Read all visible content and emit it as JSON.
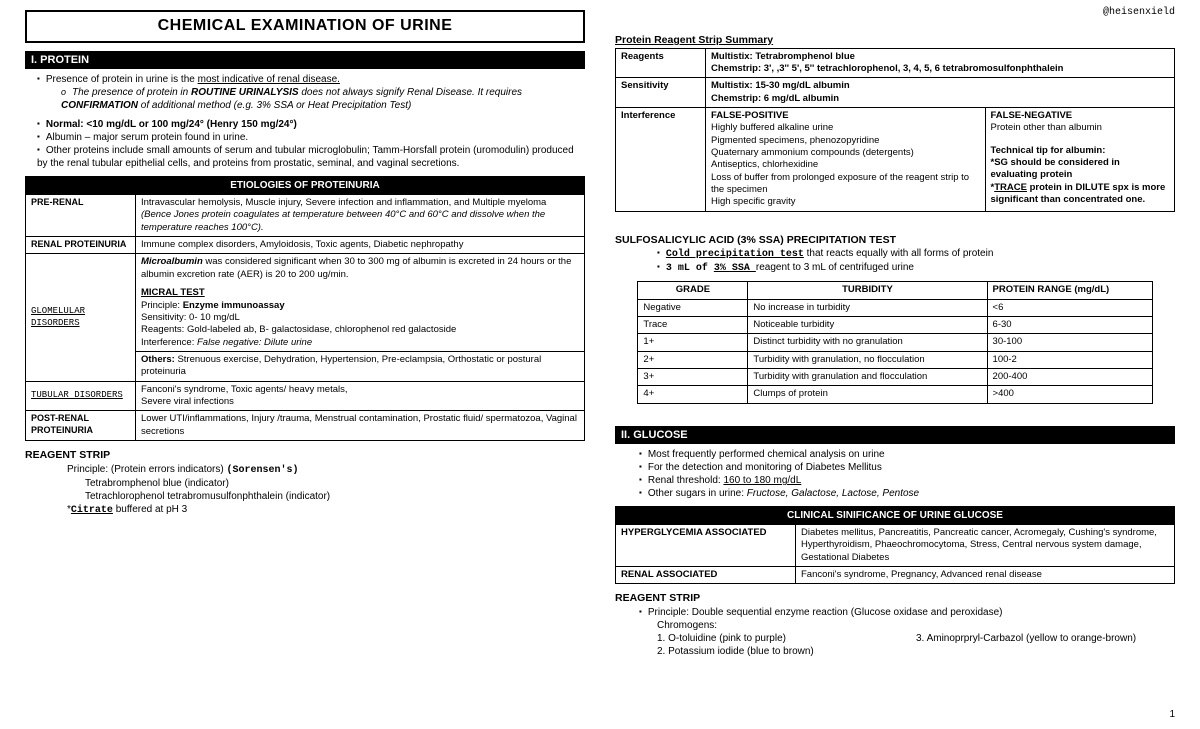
{
  "watermark": "@heisenxield",
  "pageNum": "1",
  "title": "CHEMICAL EXAMINATION OF URINE",
  "sec1": {
    "bar": "I. PROTEIN",
    "b1a": "Presence of protein in urine is the ",
    "b1b": "most indicative of renal disease.",
    "b1sub_a": "The presence of protein in ",
    "b1sub_b": "ROUTINE URINALYSIS",
    "b1sub_c": " does not always signify Renal Disease. It requires ",
    "b1sub_d": "CONFIRMATION",
    "b1sub_e": " of additional method (e.g. 3% SSA or Heat Precipitation Test)",
    "b2": "Normal: <10 mg/dL or 100 mg/24° (Henry 150 mg/24°)",
    "b3": "Albumin – major serum protein found in urine.",
    "b4": "Other proteins include small amounts of serum and tubular microglobulin; Tamm-Horsfall protein (uromodulin) produced by the renal tubular epithelial cells, and proteins from prostatic, seminal, and vaginal secretions."
  },
  "etio": {
    "header": "ETIOLOGIES OF PROTEINURIA",
    "r1_label": "PRE-RENAL",
    "r1_a": "Intravascular hemolysis, Muscle injury, Severe infection and inflammation, and Multiple myeloma ",
    "r1_b": "(Bence Jones protein coagulates at temperature between 40°C and 60°C and dissolve when the temperature reaches 100°C).",
    "r2_label": "RENAL PROTEINURIA",
    "r2_text": "Immune complex disorders, Amyloidosis, Toxic agents, Diabetic nephropathy",
    "r3_label": "GLOMELULAR DISORDERS",
    "r3_a": "Microalbumin",
    "r3_b": " was considered significant when 30 to 300 mg of albumin is excreted in 24 hours or the albumin excretion rate (AER) is 20 to 200 ug/min.",
    "r3_mt": "MICRAL TEST",
    "r3_p1": "Principle: ",
    "r3_p2": "Enzyme immunoassay",
    "r3_s": "Sensitivity: 0- 10 mg/dL",
    "r3_r": "Reagents: Gold-labeled ab, B- galactosidase, chlorophenol red galactoside",
    "r3_i1": "Interference: ",
    "r3_i2": "False negative: Dilute urine",
    "r3_o1": "Others: ",
    "r3_o2": "Strenuous exercise, Dehydration, Hypertension, Pre-eclampsia, Orthostatic or postural proteinuria",
    "r4_label": "TUBULAR DISORDERS",
    "r4_text": "Fanconi's syndrome, Toxic agents/ heavy metals,\nSevere viral infections",
    "r5_label": "POST-RENAL PROTEINURIA",
    "r5_text": "Lower UTI/inflammations, Injury /trauma, Menstrual contamination, Prostatic fluid/ spermatozoa, Vaginal secretions"
  },
  "rstrip1": {
    "title": "REAGENT STRIP",
    "l1a": "Principle: (Protein errors indicators) ",
    "l1b": "(Sorensen's)",
    "l2": "Tetrabromphenol blue (indicator)",
    "l3": "Tetrachlorophenol tetrabromusulfonphthalein (indicator)",
    "l4a": "*",
    "l4b": "Citrate",
    "l4c": " buffered at pH 3"
  },
  "reagentSummary": {
    "title": "Protein Reagent Strip Summary",
    "r1l": "Reagents",
    "r1a": "Multistix: Tetrabromphenol blue",
    "r1b": "Chemstrip: 3', ,3'' 5', 5'' tetrachlorophenol, 3, 4, 5, 6 tetrabromosulfonphthalein",
    "r2l": "Sensitivity",
    "r2a": "Multistix: 15-30 mg/dL albumin",
    "r2b": "Chemstrip: 6 mg/dL albumin",
    "r3l": "Interference",
    "fp_h": "FALSE-POSITIVE",
    "fp1": "Highly buffered alkaline urine",
    "fp2": "Pigmented specimens, phenozopyridine",
    "fp3": "Quaternary ammonium compounds (detergents)",
    "fp4": "Antiseptics, chlorhexidine",
    "fp5": "Loss of buffer from prolonged exposure of the reagent strip to the specimen",
    "fp6": "High specific gravity",
    "fn_h": "FALSE-NEGATIVE",
    "fn1": "Protein other than albumin",
    "fn_tip": "Technical tip for albumin:",
    "fn_sg": "*SG should be considered in evaluating protein",
    "fn_tr1": "*",
    "fn_tr2": "TRACE",
    "fn_tr3": " protein in DILUTE spx is more significant than concentrated one."
  },
  "ssa": {
    "title": "SULFOSALICYLIC ACID (3% SSA) PRECIPITATION TEST",
    "b1a": "Cold precipitation test",
    "b1b": " that reacts equally with all forms of protein",
    "b2a": "3 mL of ",
    "b2b": "3% SSA ",
    "b2c": "reagent to 3 mL of centrifuged urine",
    "h1": "GRADE",
    "h2": "TURBIDITY",
    "h3": "PROTEIN RANGE (mg/dL)",
    "rows": [
      [
        "Negative",
        "No increase in turbidity",
        "<6"
      ],
      [
        "Trace",
        "Noticeable turbidity",
        "6-30"
      ],
      [
        "1+",
        "Distinct turbidity with no granulation",
        "30-100"
      ],
      [
        "2+",
        "Turbidity with granulation, no flocculation",
        "100-2"
      ],
      [
        "3+",
        "Turbidity with granulation and flocculation",
        "200-400"
      ],
      [
        "4+",
        "Clumps of protein",
        ">400"
      ]
    ]
  },
  "sec2": {
    "bar": "II. GLUCOSE",
    "b1": "Most frequently performed chemical analysis on urine",
    "b2": "For the detection and monitoring of Diabetes Mellitus",
    "b3a": "Renal threshold: ",
    "b3b": "160 to 180 mg/dL",
    "b4a": "Other sugars in urine: ",
    "b4b": "Fructose, Galactose, Lactose, Pentose"
  },
  "glucTable": {
    "header": "CLINICAL SINIFICANCE OF URINE GLUCOSE",
    "r1l": "HYPERGLYCEMIA ASSOCIATED",
    "r1t": "Diabetes mellitus, Pancreatitis, Pancreatic cancer, Acromegaly, Cushing's syndrome, Hyperthyroidism, Phaeochromocytoma, Stress, Central nervous system damage, Gestational Diabetes",
    "r2l": "RENAL ASSOCIATED",
    "r2t": "Fanconi's syndrome, Pregnancy, Advanced renal disease"
  },
  "rstrip2": {
    "title": "REAGENT STRIP",
    "b1": "Principle: Double sequential enzyme reaction (Glucose oxidase and peroxidase)",
    "chromo": "Chromogens:",
    "c1": "1. O-toluidine (pink to purple)",
    "c2": "2. Potassium iodide (blue to brown)",
    "c3": "3. Aminoprpryl-Carbazol (yellow to orange-brown)"
  }
}
